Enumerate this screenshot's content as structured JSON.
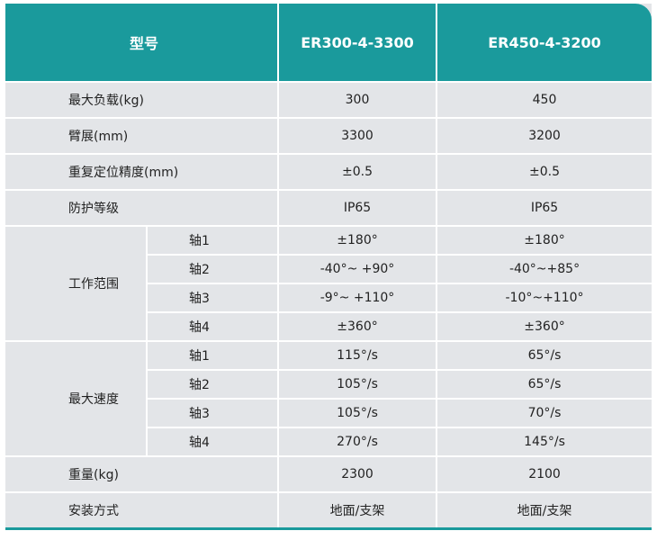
{
  "header": {
    "name": "型号",
    "model_a": "ER300-4-3300",
    "model_b": "ER450-4-3200"
  },
  "rows": [
    {
      "label": "最大负载(kg)",
      "a": "300",
      "b": "450"
    },
    {
      "label": "臂展(mm)",
      "a": "3300",
      "b": "3200"
    },
    {
      "label": "重复定位精度(mm)",
      "a": "±0.5",
      "b": "±0.5"
    },
    {
      "label": "防护等级",
      "a": "IP65",
      "b": "IP65"
    }
  ],
  "range": {
    "label": "工作范围",
    "axes": [
      {
        "label": "轴1",
        "a": "±180°",
        "b": "±180°"
      },
      {
        "label": "轴2",
        "a": "-40°~ +90°",
        "b": "-40°~+85°"
      },
      {
        "label": "轴3",
        "a": "-9°~ +110°",
        "b": "-10°~+110°"
      },
      {
        "label": "轴4",
        "a": "±360°",
        "b": "±360°"
      }
    ]
  },
  "speed": {
    "label": "最大速度",
    "axes": [
      {
        "label": "轴1",
        "a": "115°/s",
        "b": "65°/s"
      },
      {
        "label": "轴2",
        "a": "105°/s",
        "b": "65°/s"
      },
      {
        "label": "轴3",
        "a": "105°/s",
        "b": "70°/s"
      },
      {
        "label": "轴4",
        "a": "270°/s",
        "b": "145°/s"
      }
    ]
  },
  "tail": [
    {
      "label": "重量(kg)",
      "a": "2300",
      "b": "2100"
    },
    {
      "label": "安装方式",
      "a": "地面/支架",
      "b": "地面/支架"
    }
  ]
}
